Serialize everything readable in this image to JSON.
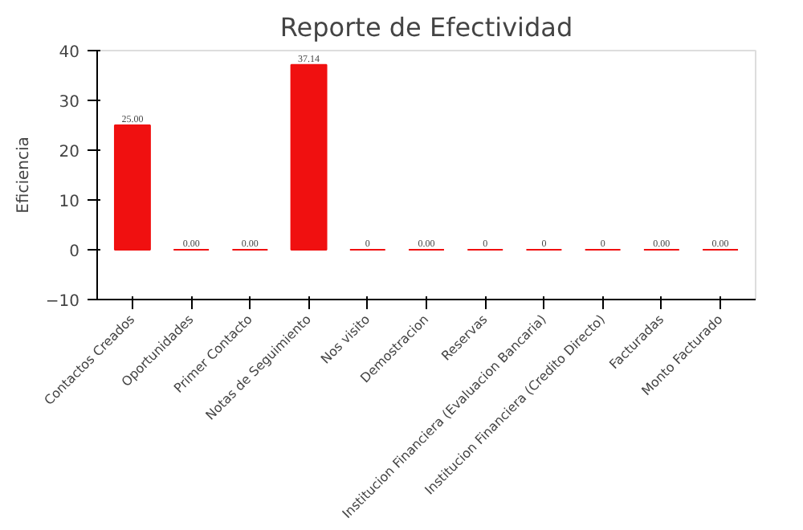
{
  "chart_data": {
    "type": "bar",
    "title": "Reporte de Efectividad",
    "ylabel": "Eficiencia",
    "categories": [
      "Contactos Creados",
      "Oportunidades",
      "Primer Contacto",
      "Notas de Seguimiento",
      "Nos visito",
      "Demostracion",
      "Reservas",
      "Institucion Financiera (Evaluacion Bancaria)",
      "Institucion Financiera (Credito Directo)",
      "Facturadas",
      "Monto Facturado"
    ],
    "values": [
      25,
      0,
      0,
      37.14,
      0,
      0,
      0,
      0,
      0,
      0,
      0
    ],
    "value_labels": [
      "25.00",
      "0.00",
      "0.00",
      "37.14",
      "0",
      "0.00",
      "0",
      "0",
      "0",
      "0.00",
      "0.00"
    ],
    "color": "#f01010",
    "ylim": [
      -10,
      40
    ],
    "yticks": [
      -10,
      0,
      10,
      20,
      30,
      40
    ],
    "grid": false
  }
}
